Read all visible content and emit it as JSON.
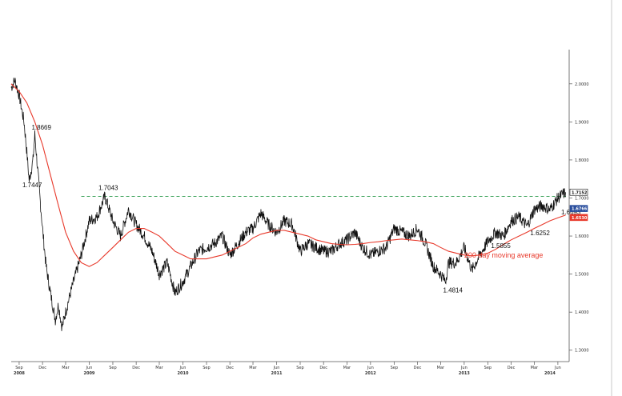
{
  "chart_data": {
    "type": "line",
    "title": "",
    "xlabel": "",
    "ylabel": "",
    "x_range": [
      "2008-08",
      "2014-07"
    ],
    "ylim": [
      1.27,
      2.09
    ],
    "y_ticks": [
      "2.0000",
      "1.9000",
      "1.8000",
      "1.7000",
      "1.6000",
      "1.5000",
      "1.4000",
      "1.3000"
    ],
    "x_months": [
      "Sep",
      "Dec",
      "Mar",
      "Jun",
      "Sep",
      "Dec",
      "Mar",
      "Jun",
      "Sep",
      "Dec",
      "Mar",
      "Jun",
      "Sep",
      "Dec",
      "Mar",
      "Jun",
      "Sep",
      "Dec",
      "Mar",
      "Jun",
      "Sep",
      "Dec",
      "Mar",
      "Jun"
    ],
    "x_years": [
      {
        "label": "2008",
        "date": "2008-09"
      },
      {
        "label": "2009",
        "date": "2009-06"
      },
      {
        "label": "2010",
        "date": "2010-06"
      },
      {
        "label": "2011",
        "date": "2011-06"
      },
      {
        "label": "2012",
        "date": "2012-06"
      },
      {
        "label": "2013",
        "date": "2013-06"
      },
      {
        "label": "2014",
        "date": "2014-05"
      }
    ],
    "grid": false,
    "series": [
      {
        "name": "",
        "color": "#111111",
        "points": [
          [
            "2008-08",
            1.99
          ],
          [
            "2008-08-15",
            2.01
          ],
          [
            "2008-09",
            1.97
          ],
          [
            "2008-09-20",
            1.9
          ],
          [
            "2008-10",
            1.82
          ],
          [
            "2008-10-10",
            1.7447
          ],
          [
            "2008-10-25",
            1.8
          ],
          [
            "2008-11",
            1.8669
          ],
          [
            "2008-11-15",
            1.75
          ],
          [
            "2008-12",
            1.62
          ],
          [
            "2008-12-15",
            1.52
          ],
          [
            "2009-01",
            1.45
          ],
          [
            "2009-01-20",
            1.38
          ],
          [
            "2009-02",
            1.42
          ],
          [
            "2009-02-15",
            1.36
          ],
          [
            "2009-03",
            1.4
          ],
          [
            "2009-03-20",
            1.45
          ],
          [
            "2009-04",
            1.48
          ],
          [
            "2009-05",
            1.55
          ],
          [
            "2009-06",
            1.64
          ],
          [
            "2009-07",
            1.65
          ],
          [
            "2009-08",
            1.7043
          ],
          [
            "2009-09",
            1.64
          ],
          [
            "2009-10",
            1.6
          ],
          [
            "2009-11",
            1.67
          ],
          [
            "2009-12",
            1.63
          ],
          [
            "2010-01",
            1.6
          ],
          [
            "2010-02",
            1.56
          ],
          [
            "2010-03",
            1.5
          ],
          [
            "2010-04",
            1.53
          ],
          [
            "2010-05",
            1.45
          ],
          [
            "2010-06",
            1.48
          ],
          [
            "2010-07",
            1.52
          ],
          [
            "2010-08",
            1.56
          ],
          [
            "2010-09",
            1.57
          ],
          [
            "2010-10",
            1.58
          ],
          [
            "2010-11",
            1.6
          ],
          [
            "2010-12",
            1.55
          ],
          [
            "2011-01",
            1.58
          ],
          [
            "2011-02",
            1.61
          ],
          [
            "2011-03",
            1.62
          ],
          [
            "2011-04",
            1.66
          ],
          [
            "2011-05",
            1.63
          ],
          [
            "2011-06",
            1.61
          ],
          [
            "2011-07",
            1.64
          ],
          [
            "2011-08",
            1.63
          ],
          [
            "2011-09",
            1.56
          ],
          [
            "2011-10",
            1.58
          ],
          [
            "2011-11",
            1.57
          ],
          [
            "2011-12",
            1.56
          ],
          [
            "2012-01",
            1.56
          ],
          [
            "2012-02",
            1.58
          ],
          [
            "2012-03",
            1.59
          ],
          [
            "2012-04",
            1.61
          ],
          [
            "2012-05",
            1.57
          ],
          [
            "2012-06",
            1.55
          ],
          [
            "2012-07",
            1.56
          ],
          [
            "2012-08",
            1.57
          ],
          [
            "2012-09",
            1.62
          ],
          [
            "2012-10",
            1.61
          ],
          [
            "2012-11",
            1.6
          ],
          [
            "2012-12",
            1.62
          ],
          [
            "2013-01",
            1.58
          ],
          [
            "2013-02",
            1.52
          ],
          [
            "2013-03",
            1.5
          ],
          [
            "2013-03-20",
            1.4814
          ],
          [
            "2013-04",
            1.53
          ],
          [
            "2013-05",
            1.53
          ],
          [
            "2013-06",
            1.57
          ],
          [
            "2013-07",
            1.51
          ],
          [
            "2013-08",
            1.55
          ],
          [
            "2013-09",
            1.5855
          ],
          [
            "2013-10",
            1.61
          ],
          [
            "2013-11",
            1.6
          ],
          [
            "2013-12",
            1.64
          ],
          [
            "2014-01",
            1.65
          ],
          [
            "2014-02",
            1.6252
          ],
          [
            "2014-03",
            1.67
          ],
          [
            "2014-04",
            1.68
          ],
          [
            "2014-05",
            1.6693
          ],
          [
            "2014-06",
            1.7
          ],
          [
            "2014-07",
            1.7152
          ]
        ]
      },
      {
        "name": "200 day moving average",
        "color": "#e83a2c",
        "points": [
          [
            "2008-08",
            2.0
          ],
          [
            "2008-09",
            1.98
          ],
          [
            "2008-10",
            1.95
          ],
          [
            "2008-11",
            1.9
          ],
          [
            "2008-12",
            1.84
          ],
          [
            "2009-01",
            1.76
          ],
          [
            "2009-02",
            1.68
          ],
          [
            "2009-03",
            1.61
          ],
          [
            "2009-04",
            1.56
          ],
          [
            "2009-05",
            1.53
          ],
          [
            "2009-06",
            1.52
          ],
          [
            "2009-07",
            1.53
          ],
          [
            "2009-08",
            1.55
          ],
          [
            "2009-09",
            1.57
          ],
          [
            "2009-10",
            1.59
          ],
          [
            "2009-11",
            1.61
          ],
          [
            "2009-12",
            1.62
          ],
          [
            "2010-01",
            1.62
          ],
          [
            "2010-02",
            1.61
          ],
          [
            "2010-03",
            1.6
          ],
          [
            "2010-04",
            1.58
          ],
          [
            "2010-05",
            1.56
          ],
          [
            "2010-06",
            1.55
          ],
          [
            "2010-07",
            1.54
          ],
          [
            "2010-08",
            1.54
          ],
          [
            "2010-09",
            1.54
          ],
          [
            "2010-10",
            1.545
          ],
          [
            "2010-11",
            1.55
          ],
          [
            "2010-12",
            1.56
          ],
          [
            "2011-01",
            1.57
          ],
          [
            "2011-02",
            1.58
          ],
          [
            "2011-03",
            1.595
          ],
          [
            "2011-04",
            1.605
          ],
          [
            "2011-05",
            1.61
          ],
          [
            "2011-06",
            1.615
          ],
          [
            "2011-07",
            1.615
          ],
          [
            "2011-08",
            1.61
          ],
          [
            "2011-09",
            1.605
          ],
          [
            "2011-10",
            1.6
          ],
          [
            "2011-11",
            1.59
          ],
          [
            "2011-12",
            1.585
          ],
          [
            "2012-01",
            1.58
          ],
          [
            "2012-02",
            1.578
          ],
          [
            "2012-03",
            1.577
          ],
          [
            "2012-04",
            1.578
          ],
          [
            "2012-05",
            1.58
          ],
          [
            "2012-06",
            1.583
          ],
          [
            "2012-07",
            1.585
          ],
          [
            "2012-08",
            1.588
          ],
          [
            "2012-09",
            1.59
          ],
          [
            "2012-10",
            1.592
          ],
          [
            "2012-11",
            1.59
          ],
          [
            "2012-12",
            1.588
          ],
          [
            "2013-01",
            1.585
          ],
          [
            "2013-02",
            1.58
          ],
          [
            "2013-03",
            1.57
          ],
          [
            "2013-04",
            1.56
          ],
          [
            "2013-05",
            1.555
          ],
          [
            "2013-06",
            1.55
          ],
          [
            "2013-07",
            1.548
          ],
          [
            "2013-08",
            1.55
          ],
          [
            "2013-09",
            1.555
          ],
          [
            "2013-10",
            1.565
          ],
          [
            "2013-11",
            1.578
          ],
          [
            "2013-12",
            1.59
          ],
          [
            "2014-01",
            1.6
          ],
          [
            "2014-02",
            1.61
          ],
          [
            "2014-03",
            1.62
          ],
          [
            "2014-04",
            1.63
          ],
          [
            "2014-05",
            1.64
          ],
          [
            "2014-06",
            1.648
          ],
          [
            "2014-07",
            1.655
          ]
        ]
      }
    ],
    "reference_line": {
      "value": 1.7043,
      "color": "#2a9a4a",
      "style": "dashed"
    },
    "annotations": [
      {
        "text": "1.8669",
        "date": "2008-11",
        "value": 1.8669
      },
      {
        "text": "1.7447",
        "date": "2008-10-10",
        "value": 1.7447
      },
      {
        "text": "1.7043",
        "date": "2009-08",
        "value": 1.7043
      },
      {
        "text": "1.4814",
        "date": "2013-03-20",
        "value": 1.4814
      },
      {
        "text": "1.5855",
        "date": "2013-09",
        "value": 1.5855
      },
      {
        "text": "1.6252",
        "date": "2014-02",
        "value": 1.6252
      },
      {
        "text": "1.6693",
        "date": "2014-05",
        "value": 1.6693
      }
    ],
    "ma_label": "200 day moving average",
    "last_value_tags": [
      {
        "text": "1.7152",
        "value": 1.7152,
        "bg": "#ffffff",
        "fg": "#111111",
        "border": "#111111"
      },
      {
        "text": "1.6766",
        "value": 1.6766,
        "bg": "#2b4f9e",
        "fg": "#ffffff",
        "border": "#2b4f9e"
      },
      {
        "text": "1.6530",
        "value": 1.653,
        "bg": "#e83a2c",
        "fg": "#ffffff",
        "border": "#e83a2c"
      }
    ]
  }
}
